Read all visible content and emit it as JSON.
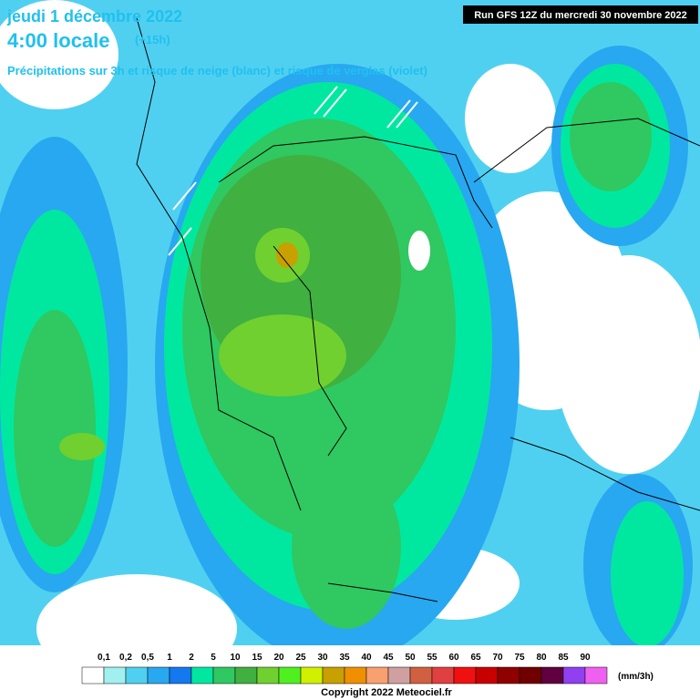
{
  "header": {
    "date": "jeudi 1 décembre 2022",
    "time": "4:00 locale",
    "offset": "(+15h)",
    "subtitle": "Précipitations sur 3h et risque de neige (blanc) et risque de verglas (violet)",
    "run": "Run GFS 12Z du mercredi 30 novembre 2022"
  },
  "legend": {
    "labels": [
      "0,1",
      "0,2",
      "0,5",
      "1",
      "2",
      "5",
      "10",
      "15",
      "20",
      "25",
      "30",
      "35",
      "40",
      "45",
      "50",
      "55",
      "60",
      "65",
      "70",
      "75",
      "80",
      "85",
      "90"
    ],
    "colors": [
      "#ffffff",
      "#a0f0f0",
      "#50d0f0",
      "#28a8f0",
      "#1478f0",
      "#00e8a0",
      "#30c860",
      "#40b040",
      "#70d030",
      "#50f020",
      "#d0f000",
      "#c8a000",
      "#f09000",
      "#f8a070",
      "#d0a0a0",
      "#d06040",
      "#e04040",
      "#f01010",
      "#c80000",
      "#900000",
      "#700000",
      "#600040",
      "#9040f0",
      "#f060f0"
    ],
    "unit": "(mm/3h)"
  },
  "footer": {
    "copyright": "Copyright 2022 Meteociel.fr"
  }
}
